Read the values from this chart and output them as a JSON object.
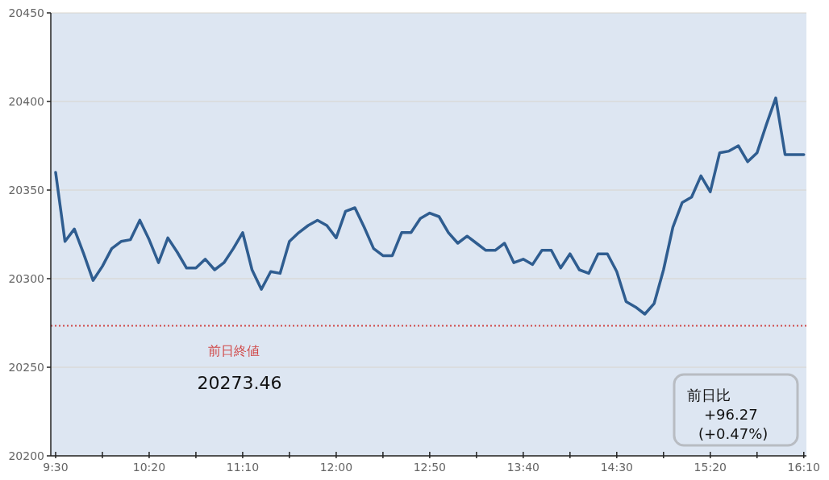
{
  "chart_data": {
    "type": "line",
    "x": [
      9.5,
      9.5833,
      9.6667,
      9.75,
      9.8333,
      9.9167,
      10,
      10.0833,
      10.1667,
      10.25,
      10.3333,
      10.4167,
      10.5,
      10.5833,
      10.6667,
      10.75,
      10.8333,
      10.9167,
      11,
      11.0833,
      11.1667,
      11.25,
      11.3333,
      11.4167,
      11.5,
      11.5833,
      11.6667,
      11.75,
      11.8333,
      11.9167,
      12,
      12.0833,
      12.1667,
      12.25,
      12.3333,
      12.4167,
      12.5,
      12.5833,
      12.6667,
      12.75,
      12.8333,
      12.9167,
      13,
      13.0833,
      13.1667,
      13.25,
      13.3333,
      13.4167,
      13.5,
      13.5833,
      13.6667,
      13.75,
      13.8333,
      13.9167,
      14,
      14.0833,
      14.1667,
      14.25,
      14.3333,
      14.4167,
      14.5,
      14.5833,
      14.6667,
      14.75,
      14.8333,
      14.9167,
      15,
      15.0833,
      15.1667,
      15.25,
      15.3333,
      15.4167,
      15.5,
      15.5833,
      15.6667,
      15.75,
      15.8333,
      15.9167,
      16,
      16.0833,
      16.1667
    ],
    "series": [
      {
        "color": "#2f5d90",
        "values": [
          20360,
          20321,
          20328,
          20314,
          20299,
          20307,
          20317,
          20321,
          20322,
          20333,
          20322,
          20309,
          20323,
          20315,
          20306,
          20306,
          20311,
          20305,
          20309,
          20317,
          20326,
          20305,
          20294,
          20304,
          20303,
          20321,
          20326,
          20330,
          20333,
          20330,
          20323,
          20338,
          20340,
          20329,
          20317,
          20313,
          20313,
          20326,
          20326,
          20334,
          20337,
          20335,
          20326,
          20320,
          20324,
          20320,
          20316,
          20316,
          20320,
          20309,
          20311,
          20308,
          20316,
          20316,
          20306,
          20314,
          20305,
          20303,
          20314,
          20314,
          20304,
          20287,
          20284,
          20280,
          20286,
          20305,
          20329,
          20343,
          20346,
          20358,
          20349,
          20371,
          20372,
          20375,
          20366,
          20371,
          20387,
          20402,
          20370,
          20370,
          20370
        ]
      }
    ],
    "xlim": [
      9.457,
      16.19
    ],
    "xticks": [
      {
        "value": 9.5,
        "label": "9:30"
      },
      {
        "value": 9.9167,
        "label": null
      },
      {
        "value": 10.3333,
        "label": "10:20"
      },
      {
        "value": 10.75,
        "label": null
      },
      {
        "value": 11.1667,
        "label": "11:10"
      },
      {
        "value": 11.5833,
        "label": null
      },
      {
        "value": 12,
        "label": "12:00"
      },
      {
        "value": 12.4167,
        "label": null
      },
      {
        "value": 12.8333,
        "label": "12:50"
      },
      {
        "value": 13.25,
        "label": null
      },
      {
        "value": 13.6667,
        "label": "13:40"
      },
      {
        "value": 14.0833,
        "label": null
      },
      {
        "value": 14.5,
        "label": "14:30"
      },
      {
        "value": 14.9167,
        "label": null
      },
      {
        "value": 15.3333,
        "label": "15:20"
      },
      {
        "value": 15.75,
        "label": null
      },
      {
        "value": 16.1667,
        "label": "16:10"
      }
    ],
    "ylim": [
      20200,
      20450
    ],
    "yticks": [
      20200,
      20250,
      20300,
      20350,
      20400,
      20450
    ],
    "grid": "y",
    "ref_lines": [
      {
        "axis": "y",
        "value": 20273.46,
        "label": "前日終値",
        "color": "#d04848",
        "line_style": "dotted"
      }
    ],
    "annotations": [
      "20273.46",
      "前日比\n+96.27\n(+0.47%)"
    ]
  }
}
